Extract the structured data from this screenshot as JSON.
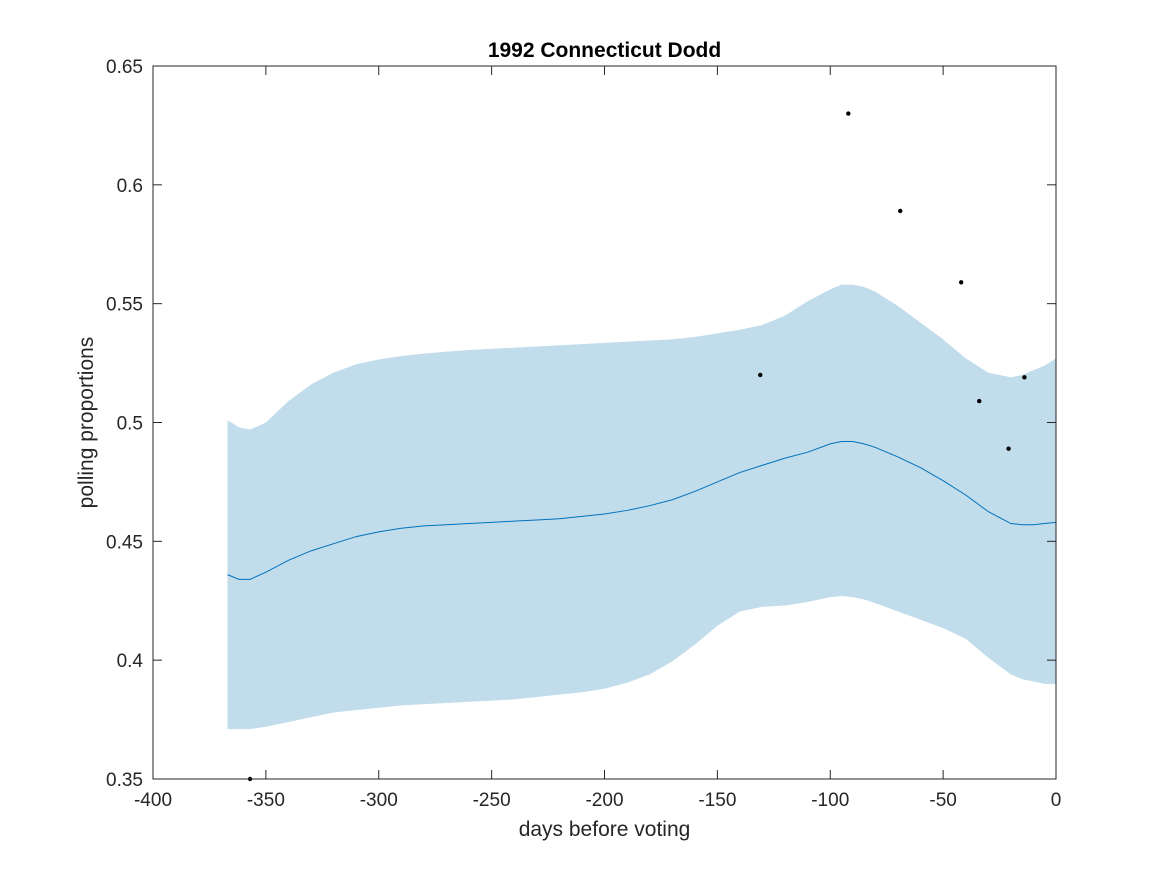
{
  "chart_data": {
    "type": "line",
    "title": "1992 Connecticut Dodd",
    "xlabel": "days before voting",
    "ylabel": "polling proportions",
    "xlim": [
      -400,
      0
    ],
    "ylim": [
      0.35,
      0.65
    ],
    "xticks": [
      -400,
      -350,
      -300,
      -250,
      -200,
      -150,
      -100,
      -50,
      0
    ],
    "xtick_labels": [
      "-400",
      "-350",
      "-300",
      "-250",
      "-200",
      "-150",
      "-100",
      "-50",
      "0"
    ],
    "yticks": [
      0.35,
      0.4,
      0.45,
      0.5,
      0.55,
      0.6,
      0.65
    ],
    "ytick_labels": [
      "0.35",
      "0.4",
      "0.45",
      "0.5",
      "0.55",
      "0.6",
      "0.65"
    ],
    "grid": false,
    "colors": {
      "band": "#c1dceb",
      "line": "#0072bd",
      "points": "#000000",
      "axes": "#262626"
    },
    "mean_line": {
      "x": [
        -367,
        -362,
        -357,
        -350,
        -340,
        -330,
        -320,
        -310,
        -300,
        -290,
        -280,
        -270,
        -260,
        -250,
        -240,
        -230,
        -220,
        -210,
        -200,
        -190,
        -180,
        -170,
        -160,
        -150,
        -140,
        -130,
        -120,
        -110,
        -100,
        -95,
        -90,
        -85,
        -80,
        -70,
        -60,
        -50,
        -40,
        -30,
        -20,
        -15,
        -10,
        -5,
        0
      ],
      "y": [
        0.436,
        0.434,
        0.434,
        0.437,
        0.442,
        0.446,
        0.449,
        0.452,
        0.454,
        0.4555,
        0.4565,
        0.457,
        0.4575,
        0.458,
        0.4585,
        0.459,
        0.4595,
        0.4605,
        0.4615,
        0.463,
        0.465,
        0.4675,
        0.471,
        0.475,
        0.479,
        0.482,
        0.485,
        0.4875,
        0.491,
        0.492,
        0.492,
        0.491,
        0.4895,
        0.4855,
        0.481,
        0.4755,
        0.4695,
        0.4625,
        0.4575,
        0.457,
        0.457,
        0.4575,
        0.458
      ]
    },
    "band_upper": {
      "x": [
        -367,
        -362,
        -357,
        -350,
        -340,
        -330,
        -320,
        -310,
        -300,
        -290,
        -280,
        -270,
        -260,
        -250,
        -240,
        -230,
        -220,
        -210,
        -200,
        -190,
        -180,
        -170,
        -160,
        -150,
        -140,
        -130,
        -120,
        -110,
        -100,
        -95,
        -90,
        -85,
        -80,
        -70,
        -60,
        -50,
        -40,
        -30,
        -20,
        -15,
        -10,
        -5,
        0
      ],
      "y": [
        0.501,
        0.498,
        0.497,
        0.5,
        0.509,
        0.516,
        0.521,
        0.5245,
        0.5265,
        0.528,
        0.529,
        0.5298,
        0.5305,
        0.531,
        0.5315,
        0.532,
        0.5325,
        0.533,
        0.5335,
        0.534,
        0.5345,
        0.535,
        0.536,
        0.5375,
        0.539,
        0.541,
        0.545,
        0.551,
        0.556,
        0.558,
        0.558,
        0.557,
        0.555,
        0.549,
        0.542,
        0.535,
        0.527,
        0.521,
        0.519,
        0.52,
        0.522,
        0.524,
        0.527
      ]
    },
    "band_lower": {
      "x": [
        -367,
        -362,
        -357,
        -350,
        -340,
        -330,
        -320,
        -310,
        -300,
        -290,
        -280,
        -270,
        -260,
        -250,
        -240,
        -230,
        -220,
        -210,
        -200,
        -190,
        -180,
        -170,
        -160,
        -150,
        -140,
        -130,
        -120,
        -110,
        -100,
        -95,
        -90,
        -85,
        -80,
        -70,
        -60,
        -50,
        -40,
        -30,
        -20,
        -15,
        -10,
        -5,
        0
      ],
      "y": [
        0.371,
        0.371,
        0.371,
        0.372,
        0.374,
        0.376,
        0.378,
        0.379,
        0.38,
        0.381,
        0.3815,
        0.382,
        0.3825,
        0.383,
        0.3835,
        0.3845,
        0.3855,
        0.3865,
        0.388,
        0.3905,
        0.394,
        0.3995,
        0.4065,
        0.4145,
        0.4205,
        0.4225,
        0.423,
        0.4245,
        0.4265,
        0.427,
        0.4265,
        0.4255,
        0.424,
        0.4205,
        0.417,
        0.4135,
        0.409,
        0.401,
        0.394,
        0.392,
        0.391,
        0.39,
        0.39
      ]
    },
    "points": [
      {
        "x": -357,
        "y": 0.35
      },
      {
        "x": -131,
        "y": 0.52
      },
      {
        "x": -92,
        "y": 0.63
      },
      {
        "x": -69,
        "y": 0.589
      },
      {
        "x": -42,
        "y": 0.559
      },
      {
        "x": -34,
        "y": 0.509
      },
      {
        "x": -21,
        "y": 0.489
      },
      {
        "x": -14,
        "y": 0.519
      }
    ]
  }
}
